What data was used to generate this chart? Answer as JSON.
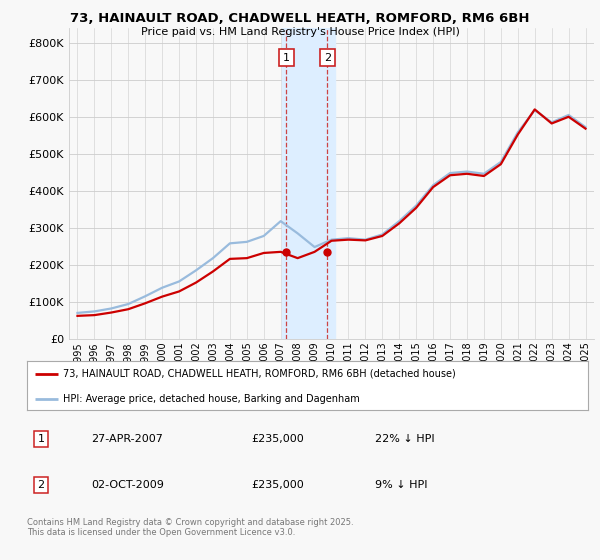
{
  "title_line1": "73, HAINAULT ROAD, CHADWELL HEATH, ROMFORD, RM6 6BH",
  "title_line2": "Price paid vs. HM Land Registry's House Price Index (HPI)",
  "ytick_labels": [
    "£0",
    "£100K",
    "£200K",
    "£300K",
    "£400K",
    "£500K",
    "£600K",
    "£700K",
    "£800K"
  ],
  "yticks": [
    0,
    100000,
    200000,
    300000,
    400000,
    500000,
    600000,
    700000,
    800000
  ],
  "ylim": [
    0,
    840000
  ],
  "xlim": [
    1994.5,
    2025.5
  ],
  "legend_label_red": "73, HAINAULT ROAD, CHADWELL HEATH, ROMFORD, RM6 6BH (detached house)",
  "legend_label_blue": "HPI: Average price, detached house, Barking and Dagenham",
  "annotation1_date": "27-APR-2007",
  "annotation1_price": "£235,000",
  "annotation1_hpi": "22% ↓ HPI",
  "annotation2_date": "02-OCT-2009",
  "annotation2_price": "£235,000",
  "annotation2_hpi": "9% ↓ HPI",
  "footer": "Contains HM Land Registry data © Crown copyright and database right 2025.\nThis data is licensed under the Open Government Licence v3.0.",
  "color_red": "#cc0000",
  "color_blue": "#99bbdd",
  "color_highlight": "#ddeeff",
  "background_color": "#f8f8f8",
  "grid_color": "#cccccc",
  "hpi_years": [
    1995,
    1996,
    1997,
    1998,
    1999,
    2000,
    2001,
    2002,
    2003,
    2004,
    2005,
    2006,
    2007,
    2008,
    2009,
    2010,
    2011,
    2012,
    2013,
    2014,
    2015,
    2016,
    2017,
    2018,
    2019,
    2020,
    2021,
    2022,
    2023,
    2024,
    2025
  ],
  "hpi_values": [
    70000,
    74000,
    82000,
    94000,
    115000,
    138000,
    155000,
    185000,
    218000,
    258000,
    262000,
    278000,
    318000,
    285000,
    248000,
    268000,
    272000,
    268000,
    282000,
    318000,
    360000,
    415000,
    448000,
    452000,
    446000,
    478000,
    558000,
    618000,
    585000,
    605000,
    572000
  ],
  "price_years": [
    1995,
    1996,
    1997,
    1998,
    1999,
    2000,
    2001,
    2002,
    2003,
    2004,
    2005,
    2006,
    2007,
    2008,
    2009,
    2010,
    2011,
    2012,
    2013,
    2014,
    2015,
    2016,
    2017,
    2018,
    2019,
    2020,
    2021,
    2022,
    2023,
    2024,
    2025
  ],
  "price_values": [
    62000,
    64000,
    71000,
    80000,
    96000,
    114000,
    128000,
    152000,
    182000,
    216000,
    218000,
    232000,
    235000,
    218000,
    235000,
    265000,
    268000,
    266000,
    278000,
    312000,
    354000,
    410000,
    442000,
    446000,
    440000,
    472000,
    552000,
    620000,
    582000,
    600000,
    568000
  ],
  "sale1_year": 2007.33,
  "sale1_price": 235000,
  "sale2_year": 2009.75,
  "sale2_price": 235000,
  "highlight_x_start": 2007.05,
  "highlight_x_end": 2010.2
}
